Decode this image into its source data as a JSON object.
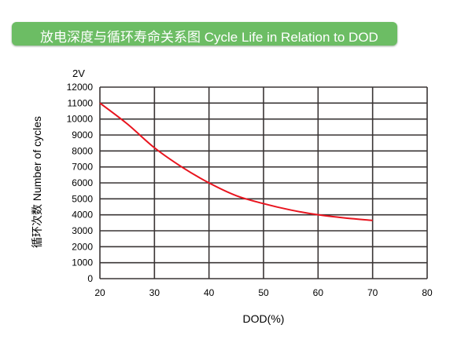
{
  "chart_data": {
    "type": "line",
    "title": "放电深度与循环寿命关系图 Cycle Life in Relation to DOD",
    "subtitle": "2V",
    "xlabel": "DOD(%)",
    "ylabel": "循环次数 Number of cycles",
    "xlim": [
      20,
      80
    ],
    "ylim": [
      0,
      12000
    ],
    "x_ticks": [
      20,
      30,
      40,
      50,
      60,
      70,
      80
    ],
    "y_ticks": [
      0,
      1000,
      2000,
      3000,
      4000,
      5000,
      6000,
      7000,
      8000,
      9000,
      10000,
      11000,
      12000
    ],
    "grid": true,
    "series": [
      {
        "color": "#e8141e",
        "x": [
          20,
          25,
          30,
          35,
          40,
          45,
          50,
          55,
          60,
          65,
          70
        ],
        "y": [
          11000,
          9700,
          8200,
          7000,
          6000,
          5200,
          4700,
          4300,
          4000,
          3800,
          3650
        ]
      }
    ]
  },
  "colors": {
    "banner": "#6cbd64",
    "grid": "#3a3535",
    "curve": "#e8141e"
  }
}
